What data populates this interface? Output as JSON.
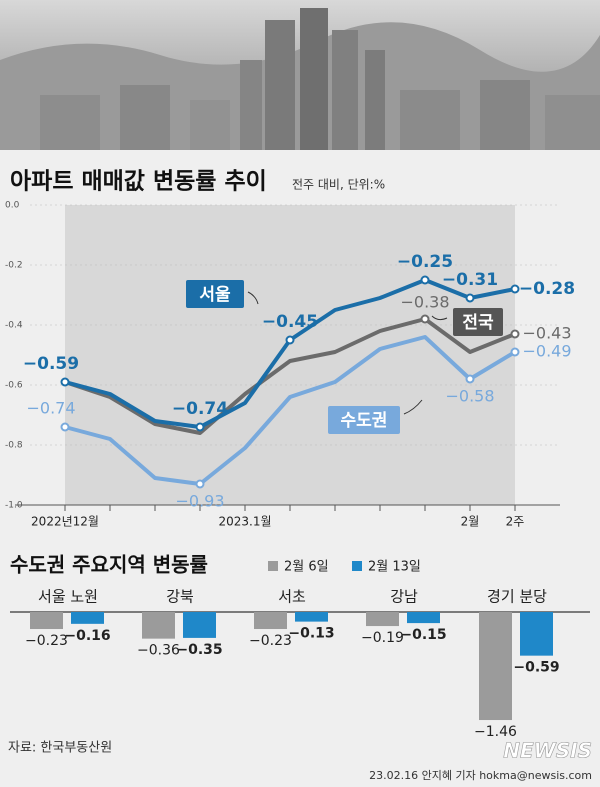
{
  "chart_data": [
    {
      "type": "line",
      "title": "아파트 매매값 변동률 추이",
      "subtitle": "전주 대비, 단위:%",
      "categories": [
        "2022년12월",
        null,
        null,
        null,
        "2023.1월",
        null,
        null,
        null,
        null,
        "2월",
        "2주"
      ],
      "ylim": [
        -1.0,
        0.0
      ],
      "yticks": [
        {
          "value": 0.0,
          "label": "0.0"
        },
        -0.2,
        -0.4,
        -0.6,
        -0.8,
        {
          "value": -1.0,
          "label": "-1.0"
        }
      ],
      "series": [
        {
          "name": "서울",
          "color": "#1b6ea8",
          "values": [
            -0.59,
            -0.63,
            -0.72,
            -0.74,
            -0.66,
            -0.45,
            -0.35,
            -0.31,
            -0.25,
            -0.31,
            -0.28
          ],
          "value_labels": [
            "−0.59",
            null,
            null,
            "−0.74",
            null,
            "−0.45",
            null,
            null,
            "−0.25",
            "−0.31",
            "−0.28"
          ]
        },
        {
          "name": "전국",
          "color": "#6b6b6b",
          "values": [
            -0.59,
            -0.64,
            -0.73,
            -0.76,
            -0.63,
            -0.52,
            -0.49,
            -0.42,
            -0.38,
            -0.49,
            -0.43
          ],
          "value_labels": [
            null,
            null,
            null,
            null,
            null,
            null,
            null,
            null,
            "−0.38",
            null,
            "−0.43"
          ]
        },
        {
          "name": "수도권",
          "color": "#78a9dc",
          "values": [
            -0.74,
            -0.78,
            -0.91,
            -0.93,
            -0.81,
            -0.64,
            -0.59,
            -0.48,
            -0.44,
            -0.58,
            -0.49
          ],
          "value_labels": [
            "−0.74",
            null,
            null,
            "−0.93",
            null,
            null,
            null,
            null,
            null,
            "−0.58",
            "−0.49"
          ]
        }
      ]
    },
    {
      "type": "bar",
      "title": "수도권 주요지역 변동률",
      "categories": [
        "서울 노원",
        "강북",
        "서초",
        "강남",
        "경기 분당"
      ],
      "series": [
        {
          "name": "2월 6일",
          "color": "#9b9b9b",
          "values": [
            -0.23,
            -0.36,
            -0.23,
            -0.19,
            -1.46
          ],
          "value_labels": [
            "−0.23",
            "−0.36",
            "−0.23",
            "−0.19",
            "−1.46"
          ]
        },
        {
          "name": "2월 13일",
          "color": "#1f88c9",
          "values": [
            -0.16,
            -0.35,
            -0.13,
            -0.15,
            -0.59
          ],
          "value_labels": [
            "−0.16",
            "−0.35",
            "−0.13",
            "−0.15",
            "−0.59"
          ]
        }
      ]
    }
  ],
  "source": "자료: 한국부동산원",
  "credit": "23.02.16 안지혜 기자 hokma@newsis.com",
  "logo": "NEWSIS"
}
